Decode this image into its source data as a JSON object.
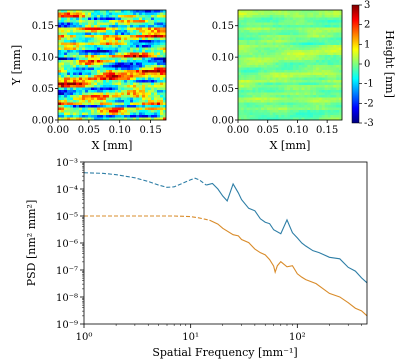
{
  "chart_data": [
    {
      "id": "height-map-before",
      "type": "heatmap",
      "xlabel": "X [mm]",
      "ylabel": "Y [mm]",
      "xlim": [
        0,
        0.175
      ],
      "ylim": [
        0,
        0.175
      ],
      "x_ticks": [
        "0.00",
        "0.05",
        "0.10",
        "0.15"
      ],
      "y_ticks": [
        "0.00",
        "0.05",
        "0.10",
        "0.15"
      ],
      "colormap": "jet",
      "value_range": [
        -3,
        3
      ]
    },
    {
      "id": "height-map-after",
      "type": "heatmap",
      "xlabel": "X [mm]",
      "ylabel": "",
      "xlim": [
        0,
        0.175
      ],
      "ylim": [
        0,
        0.175
      ],
      "x_ticks": [
        "0.00",
        "0.05",
        "0.10",
        "0.15"
      ],
      "y_ticks": [
        "0.00",
        "0.05",
        "0.10",
        "0.15"
      ],
      "colormap": "jet",
      "value_range": [
        -3,
        3
      ],
      "colorbar": {
        "label": "Height [nm]",
        "ticks": [
          "3",
          "2",
          "1",
          "0",
          "-1",
          "-2",
          "-3"
        ]
      }
    },
    {
      "id": "psd",
      "type": "line",
      "xlabel": "Spatial Frequency [mm⁻¹]",
      "ylabel": "PSD [nm² mm²]",
      "x_scale": "log",
      "y_scale": "log",
      "xlim": [
        1,
        450
      ],
      "ylim": [
        1e-09,
        0.001
      ],
      "x_ticks": [
        {
          "v": 1,
          "label": "10⁰"
        },
        {
          "v": 10,
          "label": "10¹"
        },
        {
          "v": 100,
          "label": "10²"
        }
      ],
      "y_ticks": [
        {
          "v": 1e-09,
          "label": "10⁻⁹"
        },
        {
          "v": 1e-08,
          "label": "10⁻⁸"
        },
        {
          "v": 1e-07,
          "label": "10⁻⁷"
        },
        {
          "v": 1e-06,
          "label": "10⁻⁶"
        },
        {
          "v": 1e-05,
          "label": "10⁻⁵"
        },
        {
          "v": 0.0001,
          "label": "10⁻⁴"
        },
        {
          "v": 0.001,
          "label": "10⁻³"
        }
      ],
      "series": [
        {
          "color": "#2e7ea6",
          "dashed_until": 15,
          "x": [
            1,
            1.5,
            2,
            3,
            4,
            5,
            6,
            7,
            8,
            10,
            11,
            12,
            14,
            16,
            18,
            20,
            22,
            25,
            28,
            30,
            35,
            40,
            45,
            50,
            55,
            60,
            70,
            80,
            90,
            100,
            110,
            120,
            140,
            160,
            200,
            250,
            300,
            350,
            400,
            450
          ],
          "y": [
            0.0004,
            0.00038,
            0.00034,
            0.00026,
            0.00019,
            0.00014,
            0.000115,
            0.00012,
            0.00015,
            0.00022,
            0.00025,
            0.00022,
            0.00014,
            0.00016,
            0.0001,
            5.5e-05,
            3.5e-05,
            0.00016,
            7e-05,
            4e-05,
            2e-05,
            1.5e-05,
            8e-06,
            6e-06,
            5e-06,
            3.2e-06,
            2.2e-06,
            7e-06,
            2.5e-06,
            1.5e-06,
            1e-06,
            8e-07,
            5e-07,
            4.5e-07,
            3e-07,
            2.5e-07,
            1.3e-07,
            9e-08,
            5e-08,
            3.5e-08
          ]
        },
        {
          "color": "#d98c2b",
          "dashed_until": 15,
          "x": [
            1,
            1.5,
            2,
            3,
            4,
            5,
            7,
            10,
            12,
            15,
            18,
            20,
            25,
            28,
            30,
            35,
            40,
            45,
            50,
            55,
            60,
            62,
            65,
            70,
            80,
            90,
            100,
            110,
            120,
            150,
            200,
            250,
            300,
            350,
            400,
            450
          ],
          "y": [
            1e-05,
            1e-05,
            1e-05,
            1e-05,
            1e-05,
            1e-05,
            1e-05,
            9.5e-06,
            8.5e-06,
            7e-06,
            5e-06,
            3.5e-06,
            2e-06,
            1.8e-06,
            1.4e-06,
            1e-06,
            6e-07,
            4.5e-07,
            3.5e-07,
            2.5e-07,
            1.4e-07,
            8e-08,
            1.5e-07,
            2e-07,
            1.3e-07,
            1.5e-07,
            7e-08,
            5.5e-08,
            4.5e-08,
            3e-08,
            1.4e-08,
            1e-08,
            6e-09,
            4e-09,
            3e-09,
            2e-09
          ]
        }
      ]
    }
  ]
}
